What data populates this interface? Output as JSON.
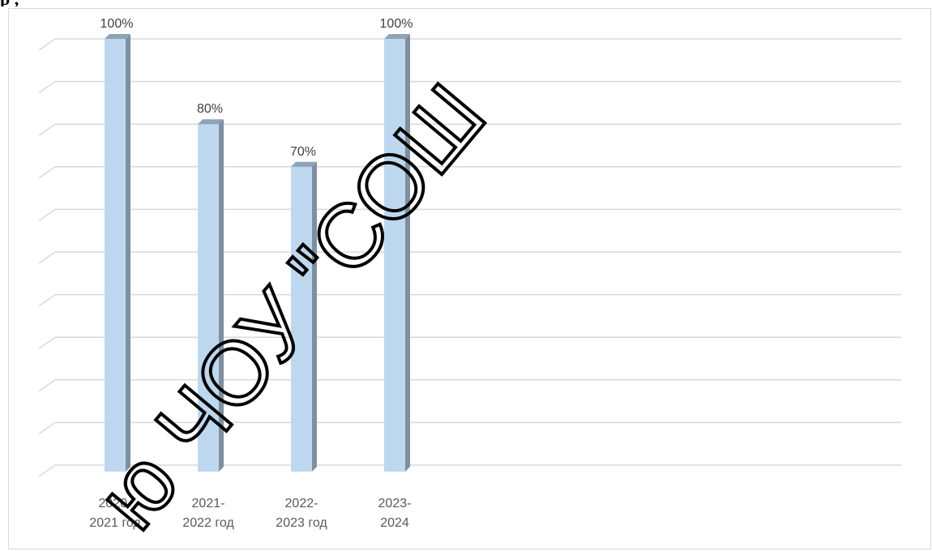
{
  "page": {
    "heading_fragment": "р                      ,"
  },
  "watermark": {
    "text": "ю ЧОУ \"СОШ"
  },
  "chart_data": {
    "type": "bar",
    "style": "3d-column",
    "categories": [
      "2020-\n2021 год",
      "2021-\n2022 год",
      "2022-\n2023 год",
      "2023-\n2024"
    ],
    "values": [
      100,
      80,
      70,
      100
    ],
    "data_labels": [
      "100%",
      "80%",
      "70%",
      "100%"
    ],
    "ylim": [
      0,
      100
    ],
    "y_step": 10,
    "grid": true,
    "y_tick_labels_visible": false,
    "legend": "none",
    "title": "",
    "xlabel": "",
    "ylabel": "",
    "colors": {
      "bar_front": "#bdd7ee",
      "bar_side": "#7f8fa0",
      "bar_top": "#8ea3b8",
      "gridline": "#d9d9d9",
      "frame": "#d9d9d9"
    }
  }
}
